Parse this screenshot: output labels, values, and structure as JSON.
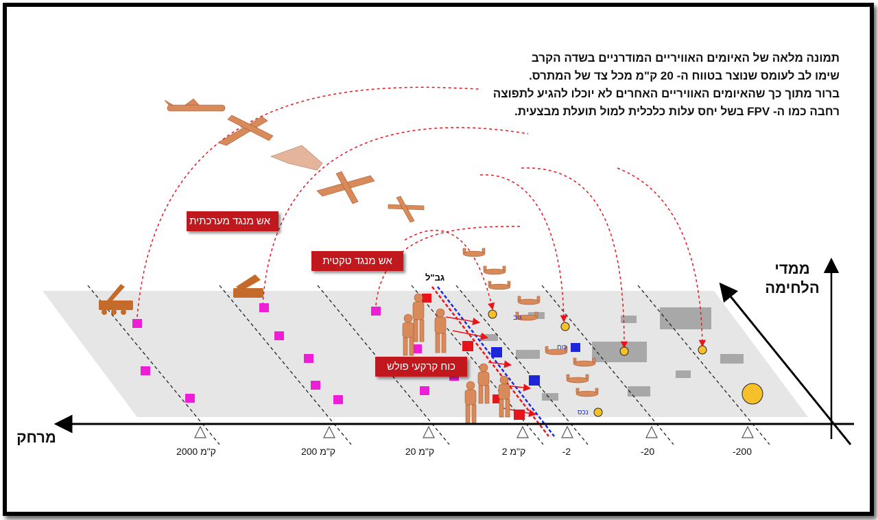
{
  "note": {
    "line1": "תמונה מלאה של האיומים האוויריים המודרניים בשדה הקרב",
    "line2": "שימו לב לעומס שנוצר בטווח ה- 20 ק\"מ מכל צד של המתרס.",
    "line3": "ברור מתוך כך שהאיומים האוויריים האחרים לא יוכלו להגיע לתפוצה רחבה כמו ה- FPV בשל יחס עלות כלכלית למול תועלת מבצעית."
  },
  "labels": {
    "strategic_fire": "אש מנגד מערכתית",
    "tactical_fire": "אש מנגד טקטית",
    "ground_force": "כוח קרקעי פולש",
    "border": "גב\"ל",
    "battlefield_dimensions": "ממדי\nהלחימה",
    "distance": "מרחק",
    "small_a": "גוב",
    "small_b": "כוח",
    "small_c": "נכס"
  },
  "ticks": [
    "2000 ק\"מ",
    "200 ק\"מ",
    "20 ק\"מ",
    "2 ק\"מ",
    "-2",
    "-20",
    "-200"
  ],
  "colors": {
    "alert_red": "#c0181d",
    "own_marker": "#ee1dd6",
    "enemy_red": "#e8141b",
    "enemy_blue": "#1e26d8",
    "target_yellow": "#f5c02a",
    "drone_orange": "#d98a5a",
    "plane_fill": "#e6e6e6"
  },
  "icons": [
    "launcher-icon",
    "rocket-launcher-icon",
    "cruise-missile-icon",
    "drone-icon",
    "fpv-drone-icon",
    "soldier-icon",
    "target-icon"
  ]
}
